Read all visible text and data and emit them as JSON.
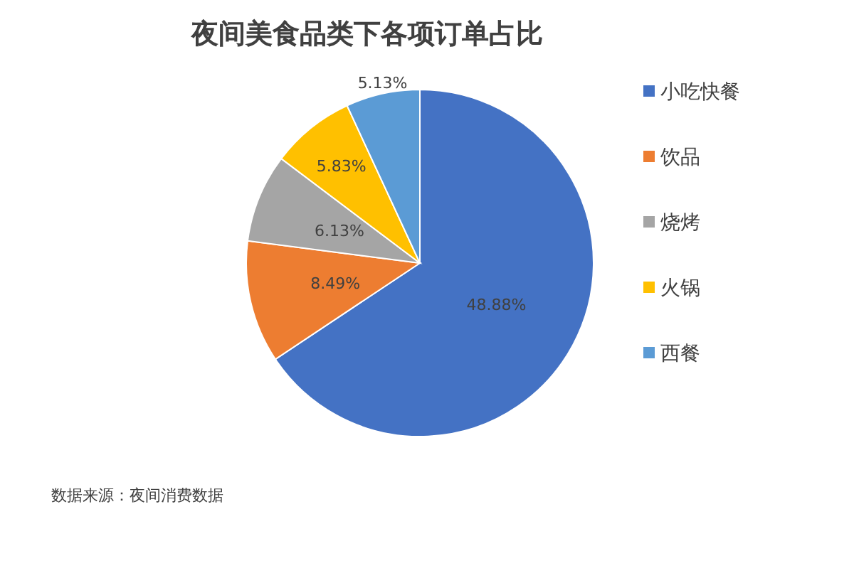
{
  "chart_data": {
    "type": "pie",
    "title": "夜间美食品类下各项订单占比",
    "categories": [
      "小吃快餐",
      "饮品",
      "烧烤",
      "火锅",
      "西餐"
    ],
    "values": [
      48.88,
      8.49,
      6.13,
      5.83,
      5.13
    ],
    "colors": [
      "#4472c4",
      "#ed7d31",
      "#a5a5a5",
      "#ffc000",
      "#5b9bd5"
    ],
    "value_labels": [
      "48.88%",
      "8.49%",
      "6.13%",
      "5.83%",
      "5.13%"
    ],
    "legend": "right",
    "annotations": [
      "数据来源：夜间消费数据"
    ]
  }
}
